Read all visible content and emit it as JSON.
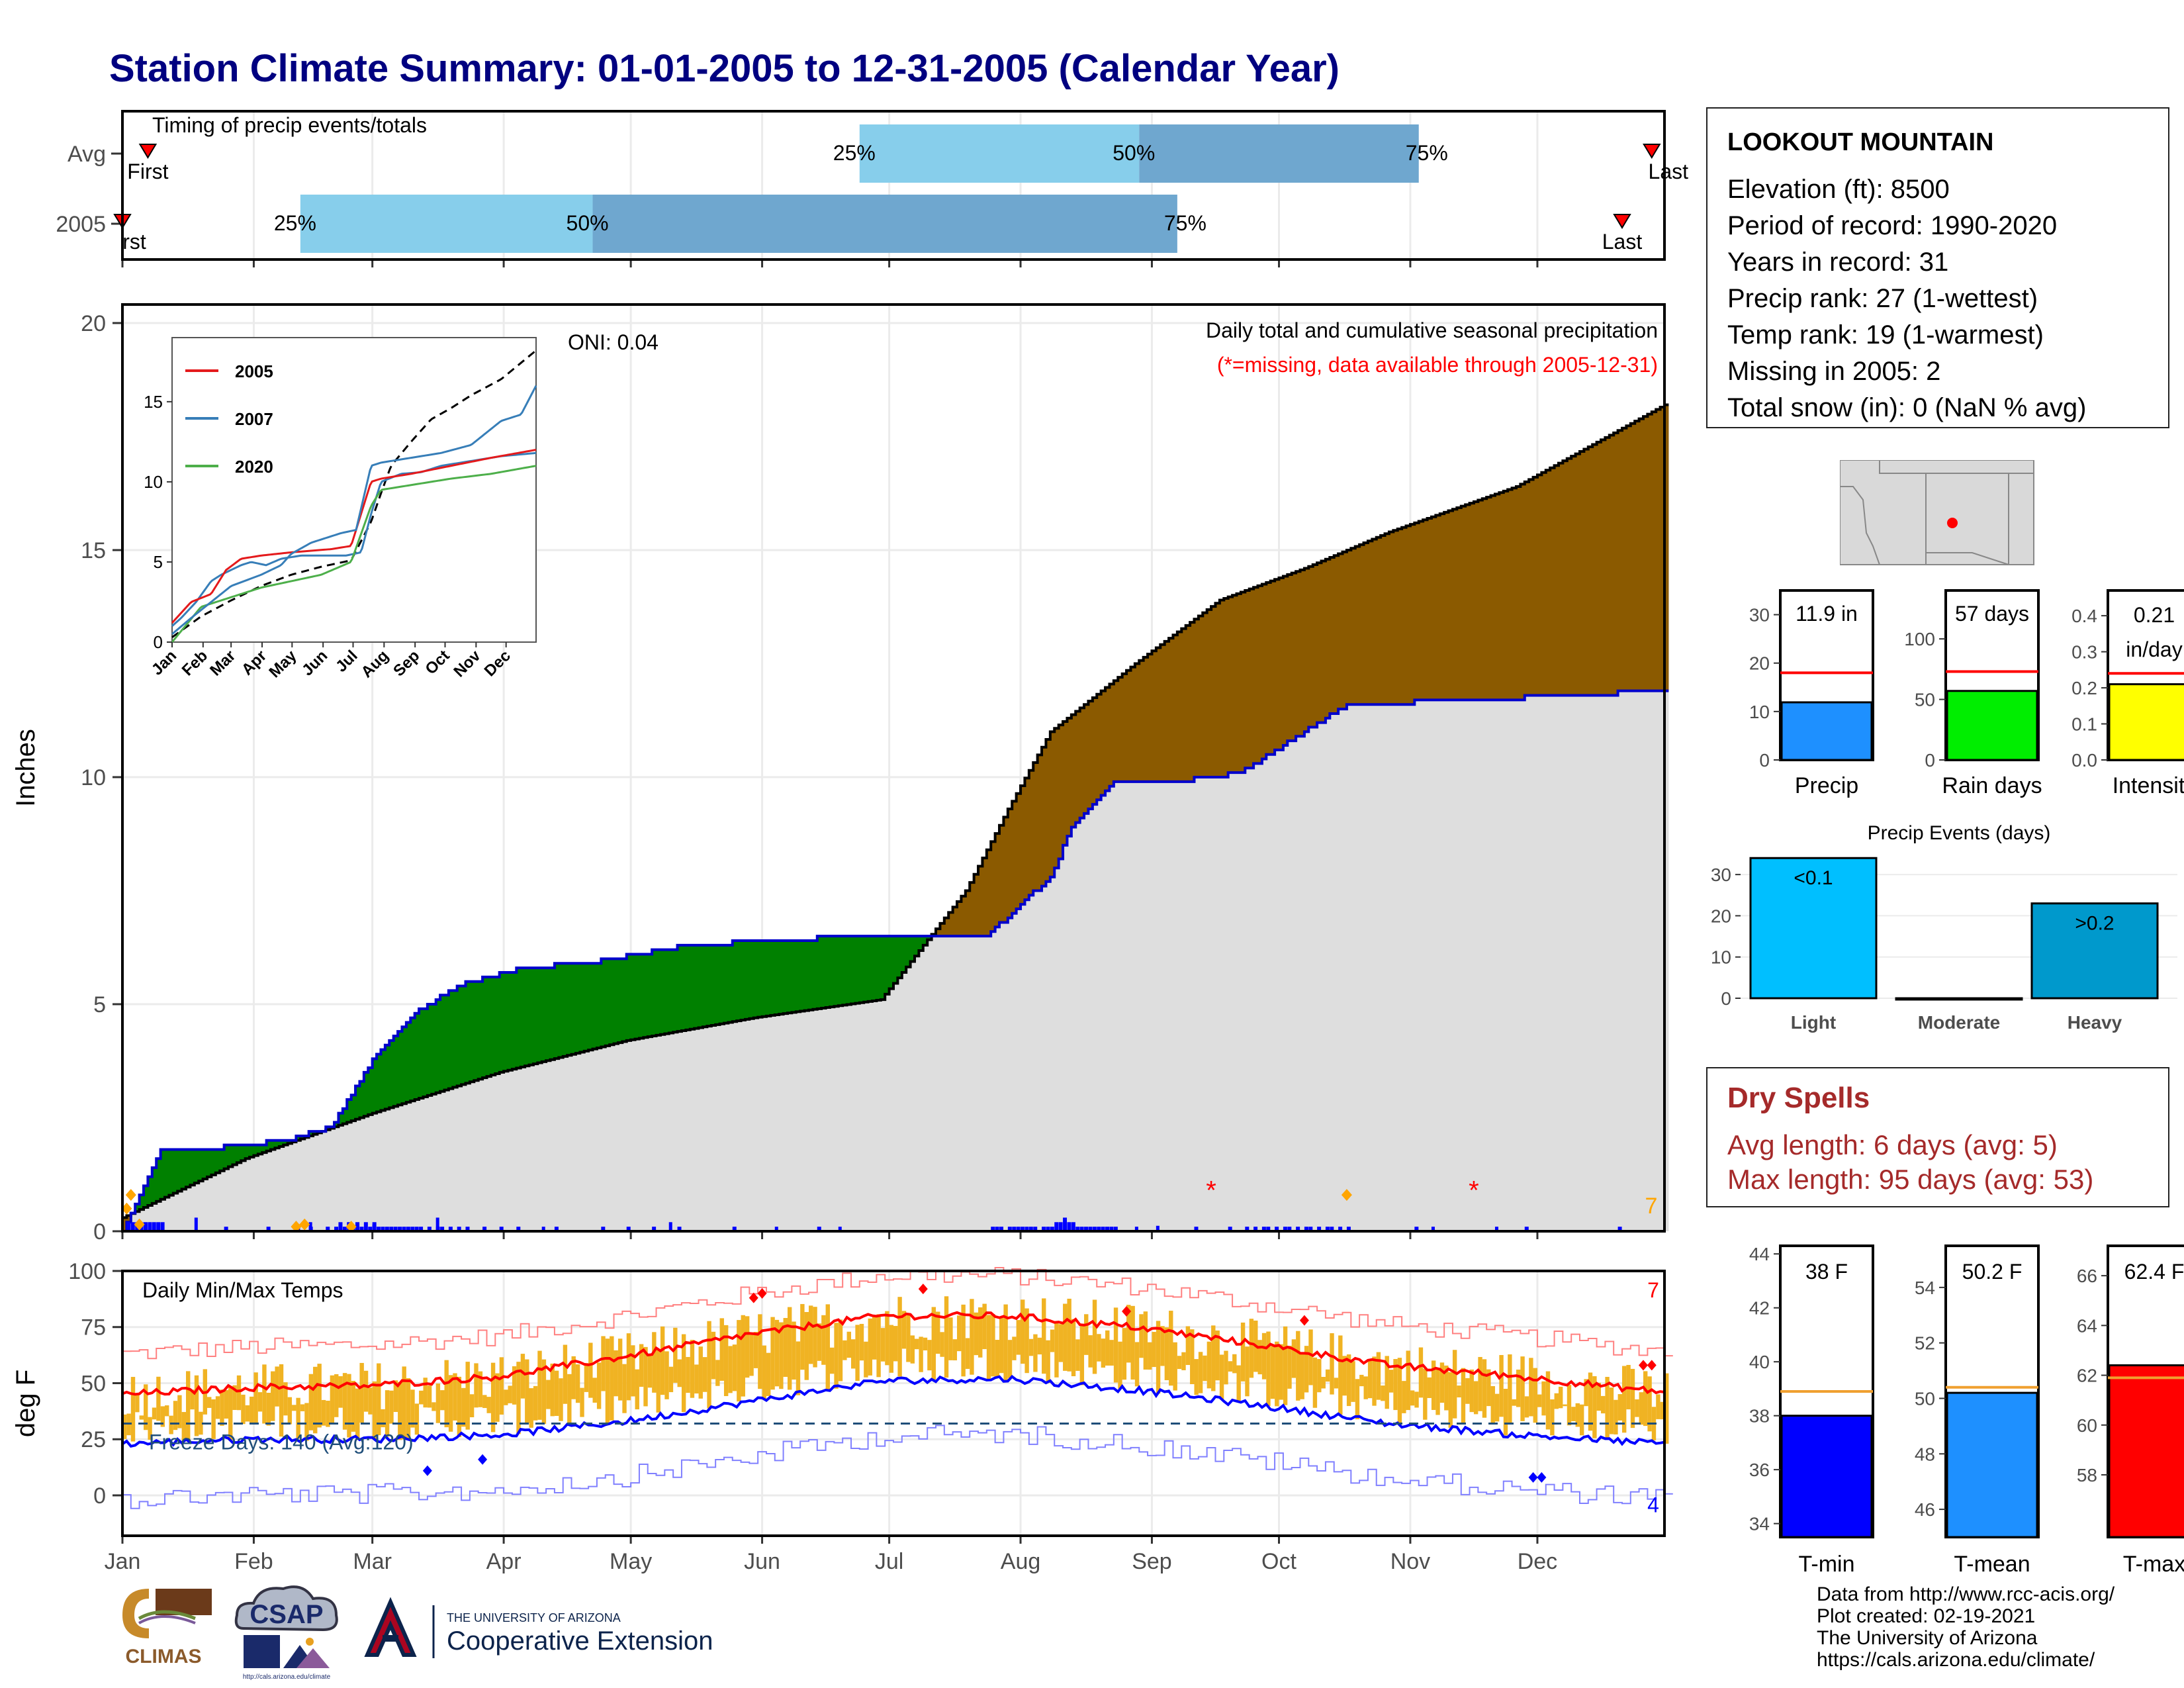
{
  "title": "Station Climate Summary: 01-01-2005 to 12-31-2005 (Calendar Year)",
  "months": [
    "Jan",
    "Feb",
    "Mar",
    "Apr",
    "May",
    "Jun",
    "Jul",
    "Aug",
    "Sep",
    "Oct",
    "Nov",
    "Dec"
  ],
  "timing": {
    "label": "Timing of precip events/totals",
    "rows": [
      "Avg",
      "2005"
    ],
    "first_label": "First",
    "first_label_2005": "rst",
    "last_label": "Last",
    "last_label_avg": "Last",
    "p25": "25%",
    "p50": "50%",
    "p75": "75%",
    "light_color": "#87ceeb",
    "dark_color": "#6fa7cf"
  },
  "precip_panel": {
    "ylabel": "Inches",
    "yticks": [
      "0",
      "5",
      "10",
      "15",
      "20"
    ],
    "oni": "ONI: 0.04",
    "heading": "Daily total and cumulative seasonal precipitation",
    "missing_note": "(*=missing, data available through 2005-12-31)",
    "missing_count": "7",
    "colors": {
      "above": "#008000",
      "below": "#8b5a00",
      "avg_fill": "#dedede",
      "line": "#0000cc",
      "bars": "#0000ff",
      "marker": "#ffa500"
    }
  },
  "inset": {
    "legend": [
      "2005",
      "2007",
      "2020"
    ],
    "legend_colors": [
      "#e41a1c",
      "#377eb8",
      "#4daf4a"
    ],
    "yticks": [
      "0",
      "5",
      "10",
      "15"
    ],
    "months": [
      "Jan",
      "Feb",
      "Mar",
      "Apr",
      "May",
      "Jun",
      "Jul",
      "Aug",
      "Sep",
      "Oct",
      "Nov",
      "Dec"
    ]
  },
  "temp_panel": {
    "ylabel": "deg F",
    "label": "Daily Min/Max Temps",
    "freeze": "Freeze Days: 140 (Avg:120)",
    "yticks": [
      "0",
      "25",
      "50",
      "75",
      "100"
    ],
    "count_top": "7",
    "count_bottom": "4"
  },
  "station": {
    "name": "LOOKOUT MOUNTAIN",
    "lines": [
      "Elevation (ft): 8500",
      "Period of record: 1990-2020",
      "Years in record: 31",
      "Precip rank: 27 (1-wettest)",
      "Temp rank: 19 (1-warmest)",
      "Missing in 2005: 2",
      "Total snow (in): 0 (NaN % avg)"
    ]
  },
  "summary_bars": [
    {
      "label": "Precip",
      "value_text": "11.9 in",
      "value": 11.9,
      "avg": 18,
      "ymax": 35,
      "yticks": [
        "0",
        "10",
        "20",
        "30"
      ],
      "color": "#1e90ff"
    },
    {
      "label": "Rain days",
      "value_text": "57 days",
      "value": 57,
      "avg": 73,
      "ymax": 140,
      "yticks": [
        "0",
        "50",
        "100"
      ],
      "color": "#00ee00"
    },
    {
      "label": "Intensity",
      "value_text": "0.21 in/day",
      "value": 0.21,
      "avg": 0.24,
      "ymax": 0.47,
      "yticks": [
        "0.0",
        "0.1",
        "0.2",
        "0.3",
        "0.4"
      ],
      "color": "#ffff00"
    }
  ],
  "precip_events": {
    "title": "Precip Events (days)",
    "categories": [
      "Light",
      "Moderate",
      "Heavy"
    ],
    "values": [
      34,
      0,
      23
    ],
    "labels": [
      "<0.1",
      "",
      ">0.2"
    ],
    "yticks": [
      "0",
      "10",
      "20",
      "30"
    ],
    "colors": [
      "#00bfff",
      "#1a8ab0",
      "#0099cc"
    ]
  },
  "dry_spells": {
    "title": "Dry Spells",
    "avg_length": "Avg length: 6 days (avg: 5)",
    "max_length": "Max length: 95 days (avg: 53)"
  },
  "temp_bars": [
    {
      "label": "T-min",
      "value_text": "38 F",
      "value": 38,
      "avg": 38.9,
      "ymin": 33.5,
      "ymax": 44.3,
      "yticks": [
        "34",
        "36",
        "38",
        "40",
        "42",
        "44"
      ],
      "color": "#0000ff"
    },
    {
      "label": "T-mean",
      "value_text": "50.2 F",
      "value": 50.2,
      "avg": 50.4,
      "ymin": 45,
      "ymax": 55.5,
      "yticks": [
        "46",
        "48",
        "50",
        "52",
        "54"
      ],
      "color": "#1e90ff"
    },
    {
      "label": "T-max",
      "value_text": "62.4 F",
      "value": 62.4,
      "avg": 61.9,
      "ymin": 55.5,
      "ymax": 67.2,
      "yticks": [
        "58",
        "60",
        "62",
        "64",
        "66"
      ],
      "color": "#ff0000"
    }
  ],
  "credits": [
    "Data from http://www.rcc-acis.org/",
    "Plot created: 02-19-2021",
    "The University of Arizona",
    "https://cals.arizona.edu/climate/"
  ],
  "logos": {
    "climas": "CLIMAS",
    "csap": "CSAP",
    "csap_url": "http://cals.arizona.edu/climate",
    "ua_small": "THE UNIVERSITY OF ARIZONA",
    "ua_big": "Cooperative Extension"
  },
  "chart_data": [
    {
      "type": "area",
      "title": "Daily total and cumulative seasonal precipitation",
      "ylabel": "Inches",
      "ylim": [
        0,
        20
      ],
      "x_months": [
        "Jan",
        "Feb",
        "Mar",
        "Apr",
        "May",
        "Jun",
        "Jul",
        "Aug",
        "Sep",
        "Oct",
        "Nov",
        "Dec"
      ],
      "series": [
        {
          "name": "2005",
          "x": [
            1,
            10,
            20,
            40,
            50,
            55,
            60,
            70,
            80,
            95,
            110,
            135,
            175,
            195,
            205,
            220,
            225,
            235,
            250,
            265,
            290,
            320,
            365
          ],
          "y": [
            0,
            1.8,
            1.8,
            2.0,
            2.3,
            3.0,
            3.8,
            4.8,
            5.4,
            5.8,
            5.9,
            6.3,
            6.5,
            6.5,
            6.5,
            7.8,
            8.9,
            9.9,
            9.9,
            10.1,
            11.6,
            11.7,
            11.9
          ]
        },
        {
          "name": "Avg",
          "x": [
            1,
            30,
            60,
            90,
            120,
            150,
            180,
            190,
            200,
            210,
            220,
            240,
            260,
            280,
            300,
            330,
            365
          ],
          "y": [
            0.3,
            1.6,
            2.6,
            3.5,
            4.2,
            4.7,
            5.1,
            6.3,
            7.5,
            9.3,
            11.0,
            12.5,
            13.9,
            14.6,
            15.4,
            16.4,
            18.2
          ]
        }
      ]
    },
    {
      "type": "line",
      "title": "Daily Min/Max Temps",
      "ylabel": "deg F",
      "ylim": [
        -18,
        100
      ],
      "series": [
        {
          "name": "avg max",
          "x": [
            1,
            30,
            60,
            90,
            120,
            150,
            180,
            210,
            240,
            270,
            300,
            330,
            365
          ],
          "y": [
            45,
            48,
            49,
            53,
            62,
            72,
            80,
            80,
            75,
            67,
            58,
            53,
            46
          ]
        },
        {
          "name": "avg min",
          "x": [
            1,
            30,
            60,
            90,
            120,
            150,
            180,
            210,
            240,
            270,
            300,
            330,
            365
          ],
          "y": [
            23,
            25,
            25,
            27,
            33,
            42,
            51,
            52,
            47,
            40,
            32,
            27,
            23
          ]
        }
      ]
    }
  ]
}
